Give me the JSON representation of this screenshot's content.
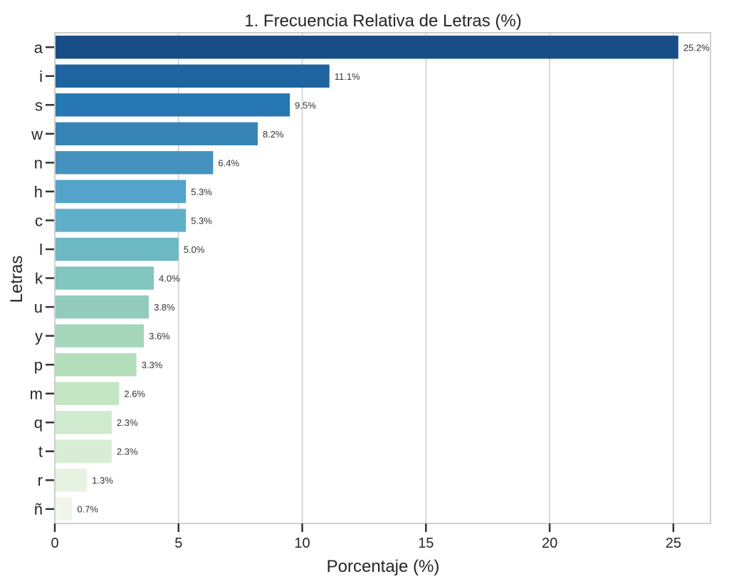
{
  "chart_data": {
    "type": "bar",
    "orientation": "horizontal",
    "title": "1. Frecuencia Relativa de Letras (%)",
    "xlabel": "Porcentaje (%)",
    "ylabel": "Letras",
    "categories": [
      "a",
      "i",
      "s",
      "w",
      "n",
      "h",
      "c",
      "l",
      "k",
      "u",
      "y",
      "p",
      "m",
      "q",
      "t",
      "r",
      "ñ"
    ],
    "values": [
      25.2,
      11.1,
      9.5,
      8.2,
      6.4,
      5.3,
      5.3,
      5.0,
      4.0,
      3.8,
      3.6,
      3.3,
      2.6,
      2.3,
      2.3,
      1.3,
      0.7
    ],
    "data_labels": [
      "25.2%",
      "11.1%",
      "9.5%",
      "8.2%",
      "6.4%",
      "5.3%",
      "5.3%",
      "5.0%",
      "4.0%",
      "3.8%",
      "3.6%",
      "3.3%",
      "2.6%",
      "2.3%",
      "2.3%",
      "1.3%",
      "0.7%"
    ],
    "colors": [
      "#184d85",
      "#1e64a0",
      "#2777b4",
      "#3683b6",
      "#4592bf",
      "#53a3cb",
      "#60afc9",
      "#6cb9c4",
      "#80c5be",
      "#91ccbd",
      "#a3d6bb",
      "#b4deba",
      "#c4e6c3",
      "#d0ead0",
      "#d8eed4",
      "#e6f3e0",
      "#eef7ea"
    ],
    "xlim": [
      0,
      26.5
    ],
    "xticks": [
      0,
      5,
      10,
      15,
      20,
      25
    ],
    "xtick_labels": [
      "0",
      "5",
      "10",
      "15",
      "20",
      "25"
    ],
    "grid": "vertical",
    "legend": "none"
  }
}
